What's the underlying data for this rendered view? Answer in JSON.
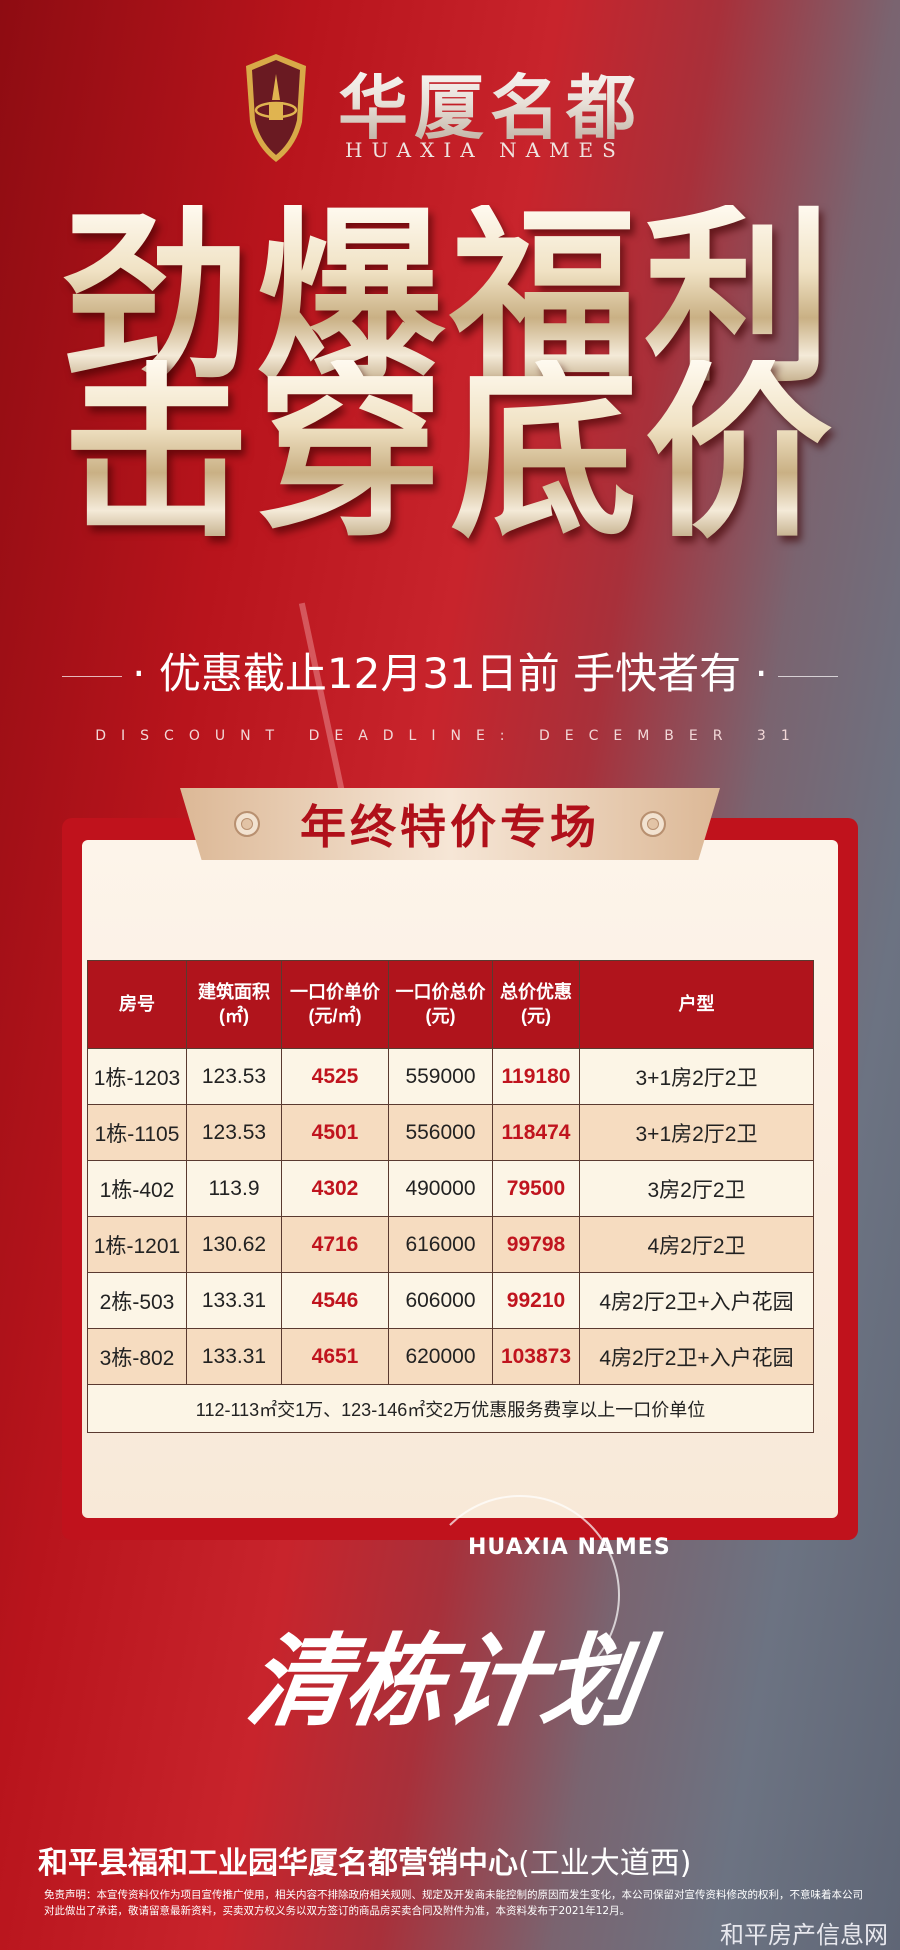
{
  "brand": {
    "name": "华厦名都",
    "name_en": "HUAXIA NAMES",
    "logo": "shield-tower-logo"
  },
  "headline": {
    "line1": "劲爆福利",
    "line2": "击穿底价"
  },
  "tagline": "优惠截止12月31日前  手快者有",
  "deadline_en": "DISCOUNT DEADLINE: DECEMBER 31",
  "banner": "年终特价专场",
  "table": {
    "headers": [
      [
        "房号",
        ""
      ],
      [
        "建筑面积",
        "(㎡)"
      ],
      [
        "一口价单价",
        "(元/㎡)"
      ],
      [
        "一口价总价",
        "(元)"
      ],
      [
        "总价优惠",
        "(元)"
      ],
      [
        "户型",
        ""
      ]
    ],
    "rows": [
      [
        "1栋-1203",
        "123.53",
        "4525",
        "559000",
        "119180",
        "3+1房2厅2卫"
      ],
      [
        "1栋-1105",
        "123.53",
        "4501",
        "556000",
        "118474",
        "3+1房2厅2卫"
      ],
      [
        "1栋-402",
        "113.9",
        "4302",
        "490000",
        "79500",
        "3房2厅2卫"
      ],
      [
        "1栋-1201",
        "130.62",
        "4716",
        "616000",
        "99798",
        "4房2厅2卫"
      ],
      [
        "2栋-503",
        "133.31",
        "4546",
        "606000",
        "99210",
        "4房2厅2卫+入户花园"
      ],
      [
        "3栋-802",
        "133.31",
        "4651",
        "620000",
        "103873",
        "4房2厅2卫+入户花园"
      ]
    ],
    "note": "112-113㎡交1万、123-146㎡交2万优惠服务费享以上一口价单位"
  },
  "plan": {
    "title": "清栋计划",
    "en": "HUAXIA NAMES"
  },
  "address": {
    "main": "和平县福和工业园华厦名都营销中心",
    "sub": "(工业大道西)"
  },
  "disclaimer": "免责声明：本宣传资料仅作为项目宣传推广使用，相关内容不排除政府相关规则、规定及开发商未能控制的原因而发生变化，本公司保留对宣传资料修改的权利，不意味着本公司对此做出了承诺，敬请留意最新资料，买卖双方权义务以双方签订的商品房买卖合同及附件为准，本资料发布于2021年12月。",
  "watermark": "和平房产信息网",
  "colors": {
    "accent_red": "#b0141c",
    "gold": "#dcb896",
    "price_red": "#c0141e"
  }
}
